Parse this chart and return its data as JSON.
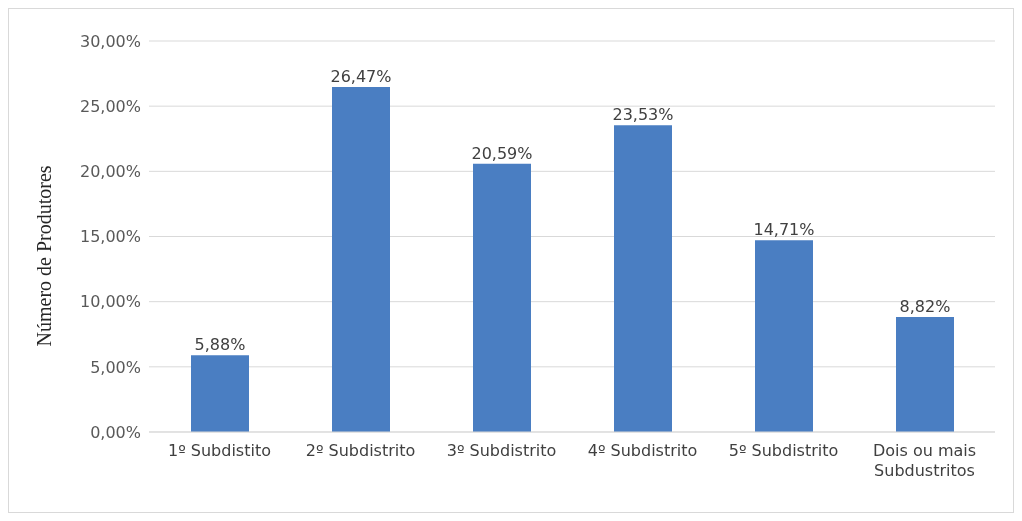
{
  "chart_data": {
    "type": "bar",
    "ylabel": "Número de Produtores",
    "categories": [
      "1º Subdistito",
      "2º Subdistrito",
      "3º Subdistrito",
      "4º Subdistrito",
      "5º Subdistrito",
      "Dois ou mais Subdustritos"
    ],
    "values": [
      5.88,
      26.47,
      20.59,
      23.53,
      14.71,
      8.82
    ],
    "value_labels": [
      "5,88%",
      "26,47%",
      "20,59%",
      "23,53%",
      "14,71%",
      "8,82%"
    ],
    "color": "#4a7ec2",
    "ylim": [
      0,
      30
    ],
    "yticks": [
      {
        "value": 0,
        "label": "0,00%"
      },
      {
        "value": 5,
        "label": "5,00%"
      },
      {
        "value": 10,
        "label": "10,00%"
      },
      {
        "value": 15,
        "label": "15,00%"
      },
      {
        "value": 20,
        "label": "20,00%"
      },
      {
        "value": 25,
        "label": "25,00%"
      },
      {
        "value": 30,
        "label": "30,00%"
      }
    ],
    "grid": "y",
    "legend": false
  }
}
